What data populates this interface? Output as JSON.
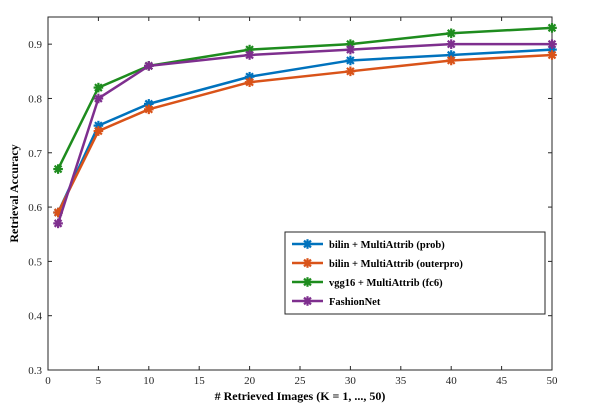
{
  "chart_data": {
    "type": "line",
    "title": "",
    "xlabel": "# Retrieved Images (K = 1, ..., 50)",
    "ylabel": "Retrieval Accuracy",
    "xlim": [
      0,
      50
    ],
    "ylim": [
      0.3,
      0.95
    ],
    "xticks": [
      0,
      5,
      10,
      15,
      20,
      25,
      30,
      35,
      40,
      45,
      50
    ],
    "yticks": [
      0.3,
      0.4,
      0.5,
      0.6,
      0.7,
      0.8,
      0.9
    ],
    "grid": false,
    "legend_position": "lower-right",
    "x": [
      1,
      5,
      10,
      20,
      30,
      40,
      50
    ],
    "series": [
      {
        "name": "bilin + MultiAttrib (prob)",
        "color": "#0072BD",
        "values": [
          0.59,
          0.75,
          0.79,
          0.84,
          0.87,
          0.88,
          0.89
        ]
      },
      {
        "name": "bilin + MultiAttrib (outerpro)",
        "color": "#D95319",
        "values": [
          0.59,
          0.74,
          0.78,
          0.83,
          0.85,
          0.87,
          0.88
        ]
      },
      {
        "name": "vgg16 + MultiAttrib (fc6)",
        "color": "#1E8C1E",
        "values": [
          0.67,
          0.82,
          0.86,
          0.89,
          0.9,
          0.92,
          0.93
        ]
      },
      {
        "name": "FashionNet",
        "color": "#7E2F8E",
        "values": [
          0.57,
          0.8,
          0.86,
          0.88,
          0.89,
          0.9,
          0.9
        ]
      }
    ]
  }
}
